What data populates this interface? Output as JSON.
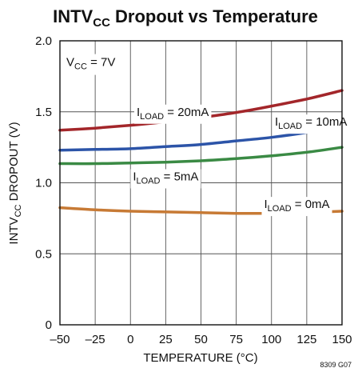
{
  "chart_data": {
    "type": "line",
    "title": {
      "main": "INTV",
      "sub": "CC",
      "rest": " Dropout vs Temperature"
    },
    "xlabel": "TEMPERATURE (°C)",
    "ylabel": {
      "main": "INTV",
      "sub": "CC",
      "rest": " DROPOUT (V)"
    },
    "xlim": [
      -50,
      150
    ],
    "ylim": [
      0,
      2.0
    ],
    "xticks": [
      "–50",
      "–25",
      "0",
      "25",
      "50",
      "75",
      "100",
      "125",
      "150"
    ],
    "yticks": [
      "0",
      "0.5",
      "1.0",
      "1.5",
      "2.0"
    ],
    "grid": true,
    "condition": {
      "main": "V",
      "sub": "CC",
      "rest": " = 7V"
    },
    "footnote": "8309 G07",
    "series": [
      {
        "name": {
          "main": "I",
          "sub": "LOAD",
          "rest": " = 20mA"
        },
        "color": "#a3262a",
        "x": [
          -50,
          -25,
          0,
          25,
          50,
          75,
          100,
          125,
          150
        ],
        "y": [
          1.37,
          1.385,
          1.405,
          1.43,
          1.46,
          1.495,
          1.54,
          1.59,
          1.65
        ]
      },
      {
        "name": {
          "main": "I",
          "sub": "LOAD",
          "rest": " = 10mA"
        },
        "color": "#2c54a8",
        "x": [
          -50,
          -25,
          0,
          25,
          50,
          75,
          100,
          125,
          150
        ],
        "y": [
          1.23,
          1.235,
          1.24,
          1.255,
          1.27,
          1.295,
          1.32,
          1.355,
          1.4
        ]
      },
      {
        "name": {
          "main": "I",
          "sub": "LOAD",
          "rest": " = 5mA"
        },
        "color": "#3a8a44",
        "x": [
          -50,
          -25,
          0,
          25,
          50,
          75,
          100,
          125,
          150
        ],
        "y": [
          1.135,
          1.135,
          1.14,
          1.145,
          1.155,
          1.17,
          1.19,
          1.215,
          1.25
        ]
      },
      {
        "name": {
          "main": "I",
          "sub": "LOAD",
          "rest": " = 0mA"
        },
        "color": "#c77a35",
        "x": [
          -50,
          -25,
          0,
          25,
          50,
          75,
          100,
          125,
          150
        ],
        "y": [
          0.825,
          0.81,
          0.8,
          0.795,
          0.79,
          0.785,
          0.785,
          0.79,
          0.8
        ]
      }
    ]
  }
}
